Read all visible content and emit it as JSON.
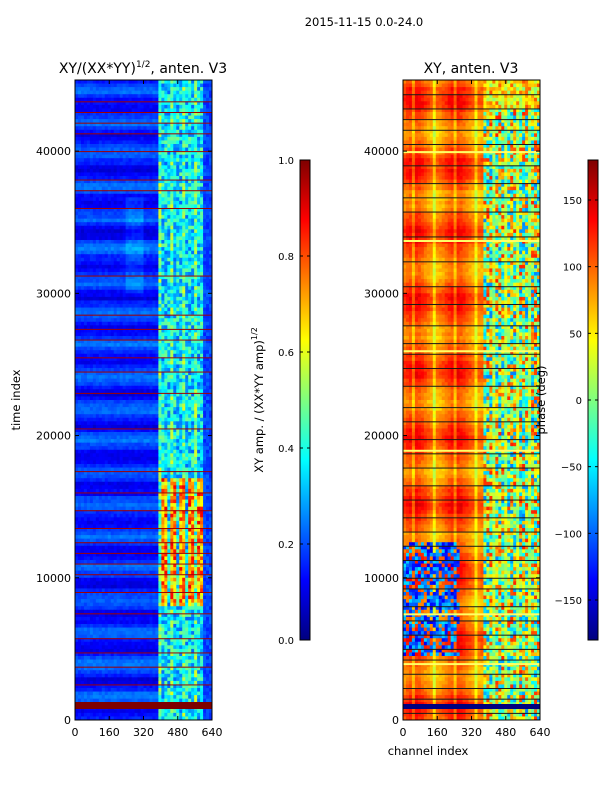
{
  "figure": {
    "suptitle": "2015-11-15 0.0-24.0",
    "colormap": [
      "#00007f",
      "#0000ff",
      "#007fff",
      "#00ffff",
      "#7fff7f",
      "#ffff00",
      "#ff7f00",
      "#ff0000",
      "#7f0000"
    ]
  },
  "chart_data": [
    {
      "type": "heatmap",
      "panel": "left",
      "title": "XY/(XX*YY)^1/2, anten. V3",
      "title_main": "XY/(XX*YY)",
      "title_exp": "1/2",
      "title_tail": ", anten. V3",
      "xlabel": "",
      "ylabel": "time index",
      "xlim": [
        0,
        640
      ],
      "ylim": [
        0,
        45000
      ],
      "xticks": [
        0,
        160,
        320,
        480,
        640
      ],
      "yticks": [
        0,
        10000,
        20000,
        30000,
        40000
      ],
      "colorbar": {
        "label": "XY amp. / (XX*YY amp)^1/2",
        "label_main": "XY amp. / (XX*YY amp)",
        "label_exp": "1/2",
        "range": [
          0.0,
          1.0
        ],
        "ticks": [
          "0.0",
          "0.2",
          "0.4",
          "0.6",
          "0.8",
          "1.0"
        ],
        "tick_values": [
          0.0,
          0.2,
          0.4,
          0.6,
          0.8,
          1.0
        ]
      },
      "description": "mostly low amplitude (blue) with higher values (cyan-yellow) in channels ~400-600; red saturated horizontal lines at many time indices"
    },
    {
      "type": "heatmap",
      "panel": "right",
      "title": "XY, anten. V3",
      "xlabel": "channel index",
      "ylabel": "",
      "xlim": [
        0,
        640
      ],
      "ylim": [
        0,
        45000
      ],
      "xticks": [
        0,
        160,
        320,
        480,
        640
      ],
      "yticks": [
        0,
        10000,
        20000,
        30000,
        40000
      ],
      "colorbar": {
        "label": "phase (deg)",
        "range": [
          -180,
          180
        ],
        "ticks": [
          "150",
          "100",
          "50",
          "0",
          "−50",
          "−100",
          "−150"
        ],
        "tick_values": [
          150,
          100,
          50,
          0,
          -50,
          -100,
          -150
        ]
      },
      "description": "phase mostly orange/red (positive) for channels 0-400, mixed phases for channels 400-640, many dark horizontal flagged lines"
    }
  ]
}
